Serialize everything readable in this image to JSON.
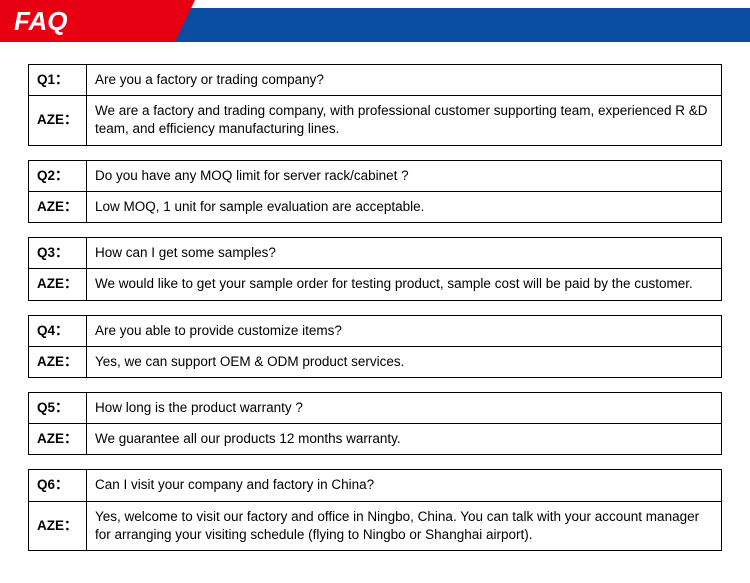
{
  "header": {
    "title": "FAQ",
    "red_color": "#e60012",
    "blue_color": "#0b4da2",
    "title_color": "#ffffff"
  },
  "faq": [
    {
      "q_label": "Q1：",
      "q_text": "Are you a factory or trading company?",
      "a_label": "AZE：",
      "a_text": " We are a factory and trading company, with professional customer supporting team, experienced R &D team, and efficiency manufacturing lines."
    },
    {
      "q_label": "Q2：",
      "q_text": "Do you have any MOQ limit for server rack/cabinet ?",
      "a_label": "AZE：",
      "a_text": " Low MOQ, 1 unit for sample evaluation are acceptable."
    },
    {
      "q_label": "Q3：",
      "q_text": "How can I get some samples?",
      "a_label": "AZE：",
      "a_text": " We would like to get your sample order for testing product, sample cost will be paid by the customer."
    },
    {
      "q_label": "Q4：",
      "q_text": "Are you able to provide customize items?",
      "a_label": "AZE：",
      "a_text": " Yes, we can support OEM & ODM product services."
    },
    {
      "q_label": "Q5：",
      "q_text": "How long is the product warranty ?",
      "a_label": "AZE：",
      "a_text": " We guarantee all our products 12 months warranty."
    },
    {
      "q_label": "Q6：",
      "q_text": "Can I visit your company and factory in China?",
      "a_label": "AZE：",
      "a_text": " Yes, welcome to visit our factory and office in Ningbo, China. You can talk with your account manager for arranging your visiting schedule (flying to Ningbo or Shanghai airport)."
    }
  ]
}
